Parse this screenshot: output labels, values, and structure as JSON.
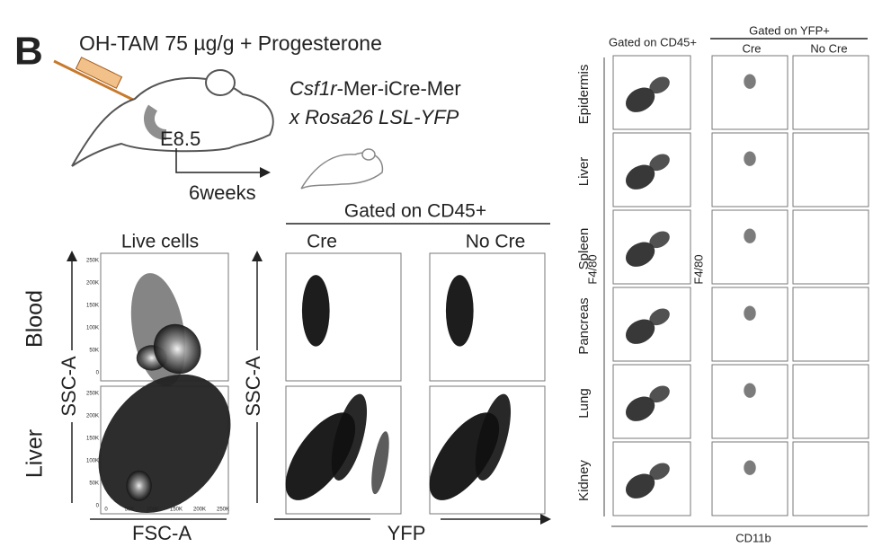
{
  "panel_label": "B",
  "treatment": "OH-TAM 75 µg/g + Progesterone",
  "embryo_stage": "E8.5",
  "mouse_line_gene": "Csf1r",
  "mouse_line_construct": "-Mer-iCre-Mer",
  "mouse_line_cross": "x Rosa26 LSL-YFP",
  "chase": "6weeks",
  "live_cells": {
    "header": "Live cells",
    "rows": [
      "Blood",
      "Liver"
    ],
    "y_axis": "SSC-A",
    "x_axis": "FSC-A",
    "y_ticks": [
      "250K",
      "200K",
      "150K",
      "100K",
      "50K",
      "0"
    ],
    "x_ticks": [
      "0",
      "50K",
      "100K",
      "150K",
      "200K",
      "250K"
    ]
  },
  "yfp_gating": {
    "header": "Gated on CD45+",
    "columns": [
      "Cre",
      "No Cre"
    ],
    "y_axis": "SSC-A",
    "x_axis": "YFP"
  },
  "macrophage_gating": {
    "header_left": "Gated on CD45+",
    "header_right": "Gated on YFP+",
    "columns": [
      "Cre",
      "No Cre"
    ],
    "rows": [
      "Epidermis",
      "Liver",
      "Spleen",
      "Pancreas",
      "Lung",
      "Kidney"
    ],
    "y_axis": "F4/80",
    "x_axis": "CD11b"
  }
}
